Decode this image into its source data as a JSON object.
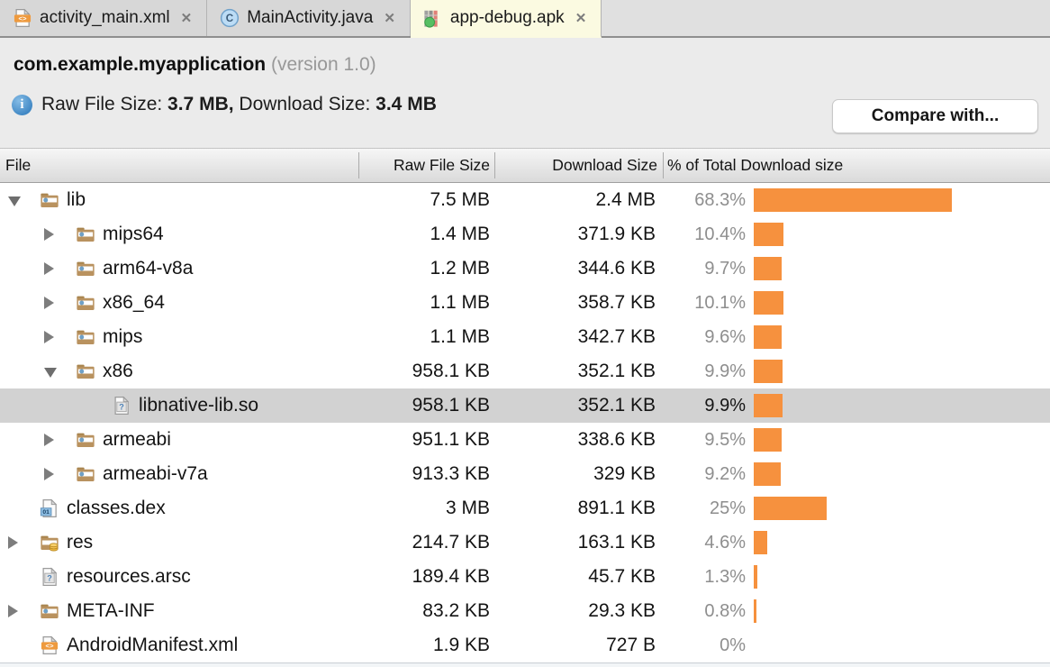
{
  "tabs": [
    {
      "label": "activity_main.xml",
      "icon": "xml-file-icon",
      "close": "close-icon",
      "active": false
    },
    {
      "label": "MainActivity.java",
      "icon": "java-class-icon",
      "close": "close-icon",
      "active": false
    },
    {
      "label": "app-debug.apk",
      "icon": "apk-icon",
      "close": "close-icon",
      "active": true
    }
  ],
  "summary": {
    "package": "com.example.myapplication",
    "version": "(version 1.0)",
    "info": {
      "raw_label": "Raw File Size: ",
      "raw_value": "3.7 MB,",
      "dl_label": " Download Size: ",
      "dl_value": "3.4 MB"
    },
    "compare_button": "Compare with..."
  },
  "table": {
    "columns": [
      "File",
      "Raw File Size",
      "Download Size",
      "% of Total Download size"
    ],
    "rows": [
      {
        "name": "lib",
        "icon": "folder-icon",
        "level": 0,
        "arrow": "expanded",
        "raw": "7.5 MB",
        "download": "2.4 MB",
        "pct_label": "68.3%",
        "pct": 68.3,
        "selected": false
      },
      {
        "name": "mips64",
        "icon": "folder-icon",
        "level": 1,
        "arrow": "collapsed",
        "raw": "1.4 MB",
        "download": "371.9 KB",
        "pct_label": "10.4%",
        "pct": 10.4,
        "selected": false
      },
      {
        "name": "arm64-v8a",
        "icon": "folder-icon",
        "level": 1,
        "arrow": "collapsed",
        "raw": "1.2 MB",
        "download": "344.6 KB",
        "pct_label": "9.7%",
        "pct": 9.7,
        "selected": false
      },
      {
        "name": "x86_64",
        "icon": "folder-icon",
        "level": 1,
        "arrow": "collapsed",
        "raw": "1.1 MB",
        "download": "358.7 KB",
        "pct_label": "10.1%",
        "pct": 10.1,
        "selected": false
      },
      {
        "name": "mips",
        "icon": "folder-icon",
        "level": 1,
        "arrow": "collapsed",
        "raw": "1.1 MB",
        "download": "342.7 KB",
        "pct_label": "9.6%",
        "pct": 9.6,
        "selected": false
      },
      {
        "name": "x86",
        "icon": "folder-icon",
        "level": 1,
        "arrow": "expanded",
        "raw": "958.1 KB",
        "download": "352.1 KB",
        "pct_label": "9.9%",
        "pct": 9.9,
        "selected": false
      },
      {
        "name": "libnative-lib.so",
        "icon": "unknown-file-icon",
        "level": 2,
        "arrow": null,
        "raw": "958.1 KB",
        "download": "352.1 KB",
        "pct_label": "9.9%",
        "pct": 9.9,
        "selected": true
      },
      {
        "name": "armeabi",
        "icon": "folder-icon",
        "level": 1,
        "arrow": "collapsed",
        "raw": "951.1 KB",
        "download": "338.6 KB",
        "pct_label": "9.5%",
        "pct": 9.5,
        "selected": false
      },
      {
        "name": "armeabi-v7a",
        "icon": "folder-icon",
        "level": 1,
        "arrow": "collapsed",
        "raw": "913.3 KB",
        "download": "329 KB",
        "pct_label": "9.2%",
        "pct": 9.2,
        "selected": false
      },
      {
        "name": "classes.dex",
        "icon": "dex-file-icon",
        "level": 0,
        "arrow": null,
        "raw": "3 MB",
        "download": "891.1 KB",
        "pct_label": "25%",
        "pct": 25,
        "selected": false
      },
      {
        "name": "res",
        "icon": "res-folder-icon",
        "level": 0,
        "arrow": "collapsed",
        "raw": "214.7 KB",
        "download": "163.1 KB",
        "pct_label": "4.6%",
        "pct": 4.6,
        "selected": false
      },
      {
        "name": "resources.arsc",
        "icon": "unknown-file-icon",
        "level": 0,
        "arrow": null,
        "raw": "189.4 KB",
        "download": "45.7 KB",
        "pct_label": "1.3%",
        "pct": 1.3,
        "selected": false
      },
      {
        "name": "META-INF",
        "icon": "folder-icon",
        "level": 0,
        "arrow": "collapsed",
        "raw": "83.2 KB",
        "download": "29.3 KB",
        "pct_label": "0.8%",
        "pct": 0.8,
        "selected": false
      },
      {
        "name": "AndroidManifest.xml",
        "icon": "xml-file-icon",
        "level": 0,
        "arrow": null,
        "raw": "1.9 KB",
        "download": "727 B",
        "pct_label": "0%",
        "pct": 0,
        "selected": false
      }
    ]
  },
  "colors": {
    "bar_orange": "#f6913e",
    "selected_row": "#d2d2d2",
    "active_tab_bg": "#fbfae1",
    "pct_text": "#8e8e8e"
  }
}
